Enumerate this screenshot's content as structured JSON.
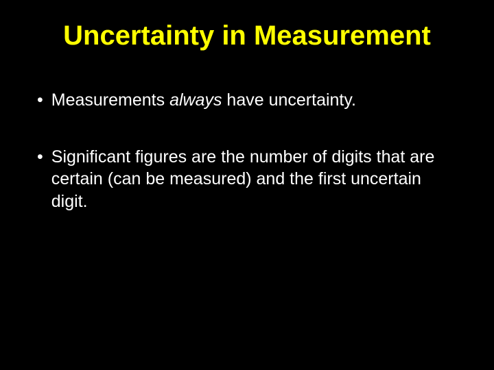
{
  "slide": {
    "title": "Uncertainty in Measurement",
    "bullets": [
      {
        "marker": "•",
        "segments": [
          {
            "text": "Measurements ",
            "style": "normal"
          },
          {
            "text": "always",
            "style": "italic"
          },
          {
            "text": " have uncertainty.",
            "style": "normal"
          }
        ]
      },
      {
        "marker": "•",
        "segments": [
          {
            "text": "Significant figures are the number of digits that are certain (can be measured) and the first uncertain digit.",
            "style": "normal"
          }
        ]
      }
    ],
    "colors": {
      "background": "#000000",
      "title": "#ffff00",
      "body_text": "#ffffff"
    },
    "typography": {
      "title_fontsize": 40,
      "title_fontweight": "bold",
      "body_fontsize": 25,
      "font_family": "Arial"
    }
  }
}
